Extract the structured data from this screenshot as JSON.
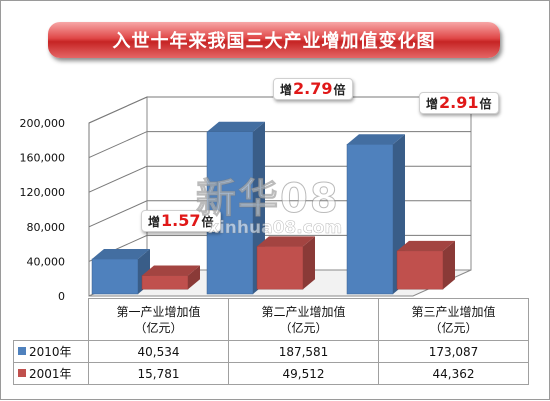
{
  "title": "入世十年来我国三大产业增加值变化图",
  "watermark": {
    "main": "新华08",
    "url": "xinhua08.com"
  },
  "colors": {
    "series_2010": "#4f81bd",
    "series_2001": "#c0504d",
    "title_banner": "#d83a3a",
    "annotation_number": "#e01818"
  },
  "annotations": [
    {
      "prefix": "增",
      "value": "1.57",
      "suffix": "倍"
    },
    {
      "prefix": "增",
      "value": "2.79",
      "suffix": "倍"
    },
    {
      "prefix": "增",
      "value": "2.91",
      "suffix": "倍"
    }
  ],
  "chart_data": {
    "type": "bar",
    "style": "3d-clustered-column",
    "categories": [
      "第一产业增加值\n（亿元）",
      "第二产业增加值\n（亿元）",
      "第三产业增加值\n（亿元）"
    ],
    "series": [
      {
        "name": "2010年",
        "values": [
          40534,
          187581,
          173087
        ],
        "labels": [
          "40,534",
          "187,581",
          "173,087"
        ]
      },
      {
        "name": "2001年",
        "values": [
          15781,
          49512,
          44362
        ],
        "labels": [
          "15,781",
          "49,512",
          "44,362"
        ]
      }
    ],
    "ylim": [
      0,
      200000
    ],
    "yticks": [
      "0",
      "40,000",
      "80,000",
      "120,000",
      "160,000",
      "200,000"
    ],
    "ytick_values": [
      0,
      40000,
      80000,
      120000,
      160000,
      200000
    ],
    "grid": true,
    "legend": "data-table"
  }
}
